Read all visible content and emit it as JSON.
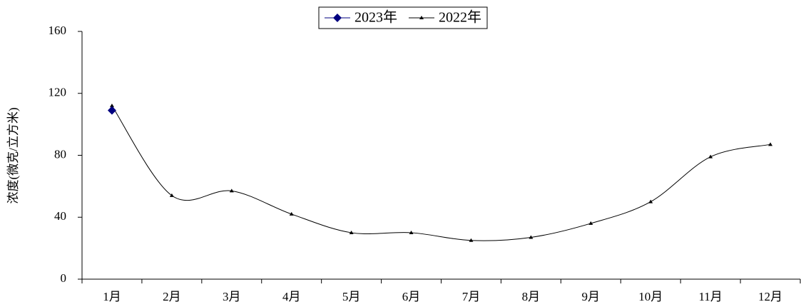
{
  "chart_data": {
    "type": "line",
    "y_label": "浓度(微克/立方米)",
    "categories": [
      "1月",
      "2月",
      "3月",
      "4月",
      "5月",
      "6月",
      "7月",
      "8月",
      "9月",
      "10月",
      "11月",
      "12月"
    ],
    "series": [
      {
        "name": "2023年",
        "color": "#000080",
        "marker": "diamond",
        "values": [
          109,
          null,
          null,
          null,
          null,
          null,
          null,
          null,
          null,
          null,
          null,
          null
        ]
      },
      {
        "name": "2022年",
        "color": "#000000",
        "marker": "triangle",
        "values": [
          112,
          54,
          57,
          42,
          30,
          30,
          25,
          27,
          36,
          50,
          79,
          87
        ]
      }
    ],
    "ylim": [
      0,
      160
    ],
    "yticks": [
      0,
      40,
      80,
      120,
      160
    ],
    "grid": false,
    "legend": "top"
  }
}
